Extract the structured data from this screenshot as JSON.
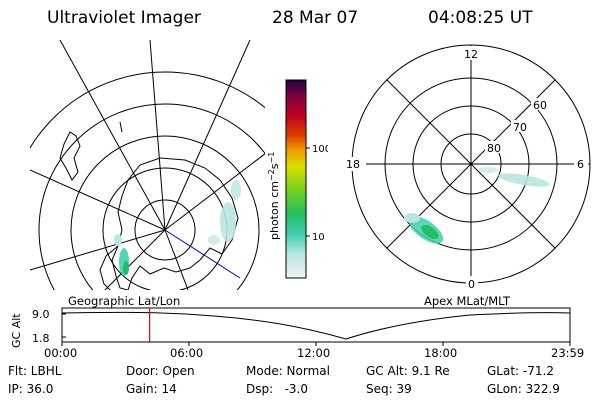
{
  "header": {
    "title": "Ultraviolet Imager",
    "date": "28 Mar 07",
    "time": "04:08:25 UT"
  },
  "colorbar": {
    "axis_label": "photon cm^-2 s^-1",
    "ticks": [
      "100",
      "10"
    ]
  },
  "geo_panel": {
    "label": "Geographic Lat/Lon"
  },
  "polar_panel": {
    "label": "Apex MLat/MLT",
    "mlt_labels": {
      "top": "12",
      "left": "18",
      "right": "6",
      "bottom": "0"
    },
    "lat_labels": [
      "60",
      "70",
      "80"
    ]
  },
  "altitude_plot": {
    "ylabel": "GC Alt",
    "ytick_top": "9.0",
    "ytick_bottom": "1.8",
    "time_ticks": [
      "00:00",
      "06:00",
      "12:00",
      "18:00",
      "23:59"
    ],
    "current_time_hours": 4.14
  },
  "info": {
    "flt": "Flt: LBHL",
    "door": "Door: Open",
    "mode": "Mode: Normal",
    "gc_alt": "GC Alt: 9.1 Re",
    "glat": "GLat: -71.2",
    "ip": "IP: 36.0",
    "gain": "Gain: 14",
    "dsp": "Dsp:   -3.0",
    "seq": "Seq: 39",
    "glon": "GLon: 322.9"
  },
  "colors": {
    "colorbar_stops": [
      "#e8eef0",
      "#b8e6e0",
      "#40d0b0",
      "#20c060",
      "#70d020",
      "#d8e000",
      "#f0a000",
      "#e04000",
      "#c00020",
      "#800040",
      "#200040"
    ],
    "time_marker": "#e00000",
    "meridian": "#0000c0"
  }
}
